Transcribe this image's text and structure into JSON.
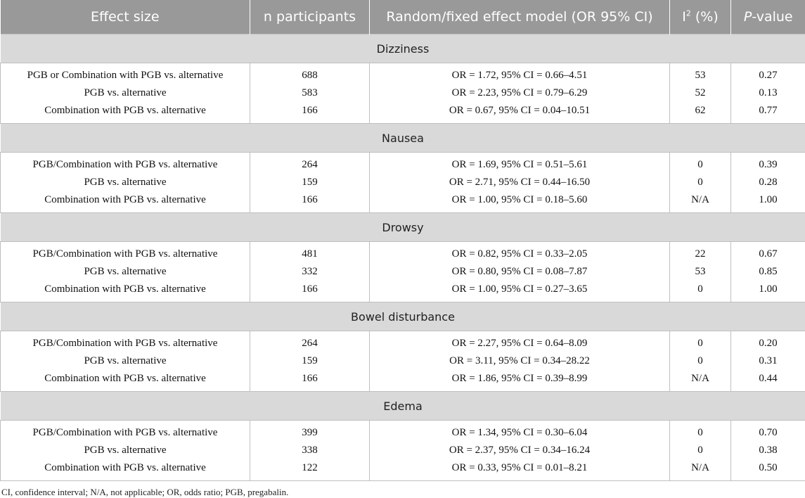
{
  "header": {
    "col1": "Effect size",
    "col2": "n participants",
    "col3": "Random/fixed effect model (OR 95% CI)",
    "col4_base": "I",
    "col4_sup": "2",
    "col4_rest": " (%)",
    "col5_italic": "P",
    "col5_rest": "-value"
  },
  "sections": [
    {
      "title": "Dizziness",
      "rows": [
        {
          "effect": "PGB or Combination with PGB vs. alternative",
          "n": "688",
          "model": "OR = 1.72, 95% CI = 0.66–4.51",
          "i2": "53",
          "p": "0.27"
        },
        {
          "effect": "PGB vs. alternative",
          "n": "583",
          "model": "OR = 2.23, 95% CI = 0.79–6.29",
          "i2": "52",
          "p": "0.13"
        },
        {
          "effect": "Combination with PGB vs. alternative",
          "n": "166",
          "model": "OR = 0.67, 95% CI = 0.04–10.51",
          "i2": "62",
          "p": "0.77"
        }
      ]
    },
    {
      "title": "Nausea",
      "rows": [
        {
          "effect": "PGB/Combination with PGB vs. alternative",
          "n": "264",
          "model": "OR = 1.69, 95% CI = 0.51–5.61",
          "i2": "0",
          "p": "0.39"
        },
        {
          "effect": "PGB vs. alternative",
          "n": "159",
          "model": "OR = 2.71, 95% CI = 0.44–16.50",
          "i2": "0",
          "p": "0.28"
        },
        {
          "effect": "Combination with PGB vs. alternative",
          "n": "166",
          "model": "OR = 1.00, 95% CI = 0.18–5.60",
          "i2": "N/A",
          "p": "1.00"
        }
      ]
    },
    {
      "title": "Drowsy",
      "rows": [
        {
          "effect": "PGB/Combination with PGB vs. alternative",
          "n": "481",
          "model": "OR = 0.82, 95% CI = 0.33–2.05",
          "i2": "22",
          "p": "0.67"
        },
        {
          "effect": "PGB vs. alternative",
          "n": "332",
          "model": "OR = 0.80, 95% CI = 0.08–7.87",
          "i2": "53",
          "p": "0.85"
        },
        {
          "effect": "Combination with PGB vs. alternative",
          "n": "166",
          "model": "OR = 1.00, 95% CI = 0.27–3.65",
          "i2": "0",
          "p": "1.00"
        }
      ]
    },
    {
      "title": "Bowel disturbance",
      "rows": [
        {
          "effect": "PGB/Combination with PGB vs. alternative",
          "n": "264",
          "model": "OR = 2.27, 95% CI = 0.64–8.09",
          "i2": "0",
          "p": "0.20"
        },
        {
          "effect": "PGB vs. alternative",
          "n": "159",
          "model": "OR = 3.11, 95% CI = 0.34–28.22",
          "i2": "0",
          "p": "0.31"
        },
        {
          "effect": "Combination with PGB vs. alternative",
          "n": "166",
          "model": "OR = 1.86, 95% CI = 0.39–8.99",
          "i2": "N/A",
          "p": "0.44"
        }
      ]
    },
    {
      "title": "Edema",
      "rows": [
        {
          "effect": "PGB/Combination with PGB vs. alternative",
          "n": "399",
          "model": "OR = 1.34, 95% CI = 0.30–6.04",
          "i2": "0",
          "p": "0.70"
        },
        {
          "effect": "PGB vs. alternative",
          "n": "338",
          "model": "OR = 2.37, 95% CI = 0.34–16.24",
          "i2": "0",
          "p": "0.38"
        },
        {
          "effect": "Combination with PGB vs. alternative",
          "n": "122",
          "model": "OR = 0.33, 95% CI = 0.01–8.21",
          "i2": "N/A",
          "p": "0.50"
        }
      ]
    }
  ],
  "footnote": "CI, confidence interval; N/A, not applicable; OR, odds ratio; PGB, pregabalin."
}
